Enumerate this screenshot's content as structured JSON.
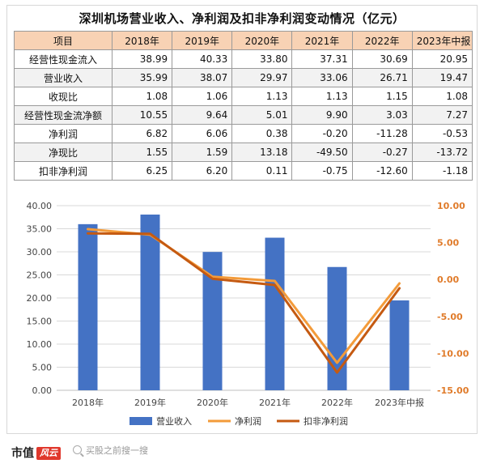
{
  "page": {
    "title": "深圳机场营业收入、净利润及扣非净利润变动情况（亿元）",
    "brand": "市值",
    "brand_mark": "风云",
    "search_placeholder": "买股之前搜一搜"
  },
  "table": {
    "header": [
      "项目",
      "2018年",
      "2019年",
      "2020年",
      "2021年",
      "2022年",
      "2023年中报"
    ],
    "rows": [
      {
        "label": "经营性现金流入",
        "values": [
          "38.99",
          "40.33",
          "33.80",
          "37.31",
          "30.69",
          "20.95"
        ]
      },
      {
        "label": "营业收入",
        "values": [
          "35.99",
          "38.07",
          "29.97",
          "33.06",
          "26.71",
          "19.47"
        ]
      },
      {
        "label": "收现比",
        "values": [
          "1.08",
          "1.06",
          "1.13",
          "1.13",
          "1.15",
          "1.08"
        ]
      },
      {
        "label": "经营性现金流净额",
        "values": [
          "10.55",
          "9.64",
          "5.01",
          "9.90",
          "3.03",
          "7.27"
        ]
      },
      {
        "label": "净利润",
        "values": [
          "6.82",
          "6.06",
          "0.38",
          "-0.20",
          "-11.28",
          "-0.53"
        ]
      },
      {
        "label": "净现比",
        "values": [
          "1.55",
          "1.59",
          "13.18",
          "-49.50",
          "-0.27",
          "-13.72"
        ]
      },
      {
        "label": "扣非净利润",
        "values": [
          "6.25",
          "6.20",
          "0.11",
          "-0.75",
          "-12.60",
          "-1.18"
        ]
      }
    ]
  },
  "chart_data": {
    "type": "bar",
    "categories": [
      "2018年",
      "2019年",
      "2020年",
      "2021年",
      "2022年",
      "2023年中报"
    ],
    "series": [
      {
        "name": "营业收入",
        "type": "bar",
        "axis": "left",
        "color": "#4472c4",
        "values": [
          35.99,
          38.07,
          29.97,
          33.06,
          26.71,
          19.47
        ]
      },
      {
        "name": "净利润",
        "type": "line",
        "axis": "right",
        "color": "#f39b3a",
        "values": [
          6.82,
          6.06,
          0.38,
          -0.2,
          -11.28,
          -0.53
        ]
      },
      {
        "name": "扣非净利润",
        "type": "line",
        "axis": "right",
        "color": "#c55a11",
        "values": [
          6.25,
          6.2,
          0.11,
          -0.75,
          -12.6,
          -1.18
        ]
      }
    ],
    "left_axis": {
      "ylim": [
        0,
        40
      ],
      "ticks": [
        "0.00",
        "5.00",
        "10.00",
        "15.00",
        "20.00",
        "25.00",
        "30.00",
        "35.00",
        "40.00"
      ]
    },
    "right_axis": {
      "ylim": [
        -15,
        10
      ],
      "ticks": [
        "-15.00",
        "-10.00",
        "-5.00",
        "0.00",
        "5.00",
        "10.00"
      ],
      "color": "#e07b2a"
    },
    "grid": true,
    "legend": "bottom"
  }
}
